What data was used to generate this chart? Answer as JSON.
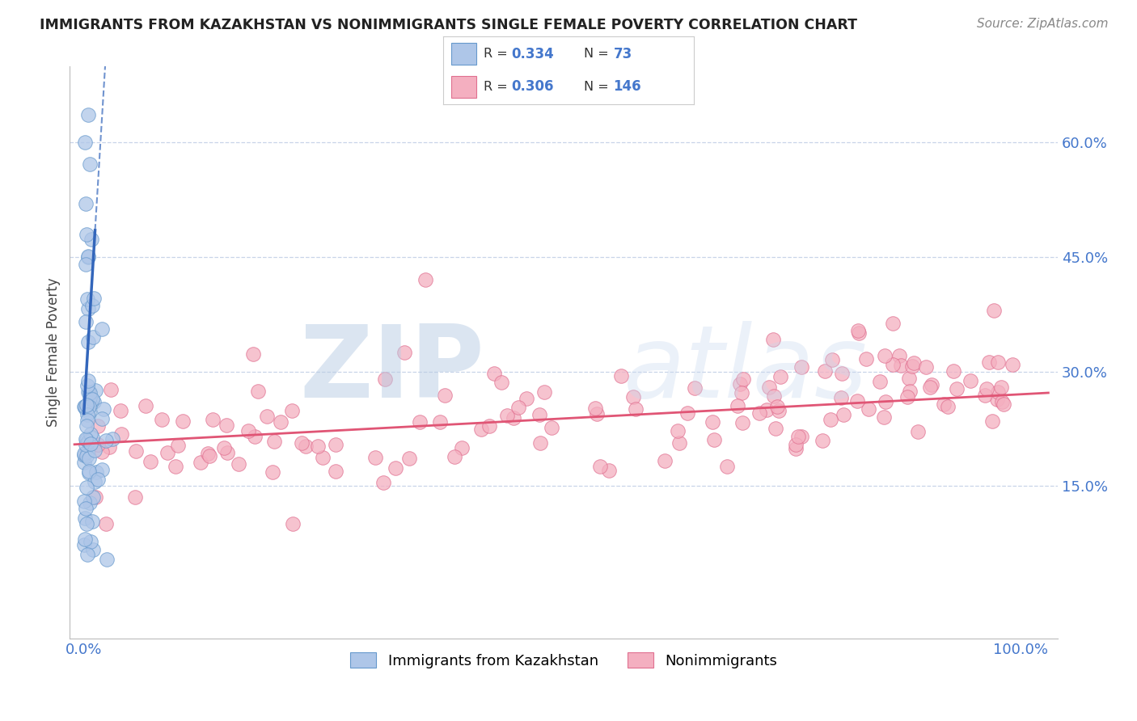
{
  "title": "IMMIGRANTS FROM KAZAKHSTAN VS NONIMMIGRANTS SINGLE FEMALE POVERTY CORRELATION CHART",
  "source": "Source: ZipAtlas.com",
  "ylabel": "Single Female Poverty",
  "watermark_zip": "ZIP",
  "watermark_atlas": "atlas",
  "legend_R1": "0.334",
  "legend_N1": "73",
  "legend_R2": "0.306",
  "legend_N2": "146",
  "blue_fill": "#aec6e8",
  "blue_edge": "#6699cc",
  "pink_fill": "#f4afc0",
  "pink_edge": "#e07090",
  "trend_blue_color": "#3366bb",
  "trend_pink_color": "#e05575",
  "grid_color": "#c8d4e8",
  "bg_color": "#ffffff",
  "label_color": "#4477cc",
  "title_color": "#222222",
  "source_color": "#888888",
  "ylabel_color": "#444444",
  "ytick_vals": [
    0.15,
    0.3,
    0.45,
    0.6
  ],
  "ytick_labels": [
    "15.0%",
    "30.0%",
    "45.0%",
    "60.0%"
  ],
  "xtick_vals": [
    0.0,
    1.0
  ],
  "xtick_labels": [
    "0.0%",
    "100.0%"
  ],
  "xlim": [
    -0.015,
    1.04
  ],
  "ylim": [
    -0.05,
    0.7
  ]
}
